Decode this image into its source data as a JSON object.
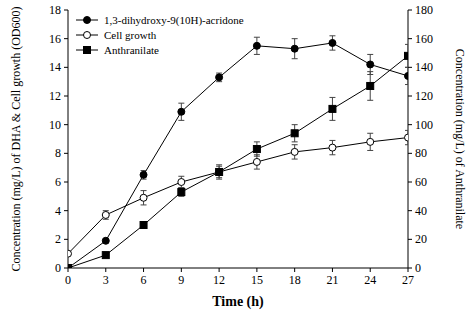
{
  "chart_data": {
    "type": "line",
    "x_label": "Time (h)",
    "y_label": "Concentration (mg/L) of DHA & Cell growth (OD600)",
    "y2_label": "Concentration (mg/L) of Anthranilate",
    "x": [
      0,
      3,
      6,
      9,
      12,
      15,
      18,
      21,
      24,
      27
    ],
    "xlim": [
      0,
      27
    ],
    "xticks": [
      0,
      3,
      6,
      9,
      12,
      15,
      18,
      21,
      24,
      27
    ],
    "ylim": [
      0,
      18
    ],
    "yticks": [
      0,
      2,
      4,
      6,
      8,
      10,
      12,
      14,
      16,
      18
    ],
    "y2lim": [
      0,
      180
    ],
    "y2ticks": [
      0,
      20,
      40,
      60,
      80,
      100,
      120,
      140,
      160,
      180
    ],
    "grid": false,
    "legend": "upper-left",
    "series": [
      {
        "name": "1,3-dihydroxy-9(10H)-acridone",
        "color": "#000000",
        "marker": "circle",
        "line_style": "solid",
        "values": [
          0,
          1.9,
          6.5,
          10.9,
          13.3,
          15.5,
          15.3,
          15.7,
          14.2,
          13.4
        ],
        "errors": [
          0,
          0.1,
          0.3,
          0.6,
          0.3,
          0.6,
          0.7,
          0.5,
          0.7,
          0.6
        ]
      },
      {
        "name": "Cell growth",
        "color": "#000000",
        "marker": "circle_open",
        "line_style": "solid",
        "values": [
          1.0,
          3.7,
          4.9,
          6.0,
          6.7,
          7.4,
          8.1,
          8.4,
          8.8,
          9.1
        ],
        "errors": [
          0,
          0.3,
          0.5,
          0.4,
          0.4,
          0.5,
          0.5,
          0.5,
          0.6,
          0.5
        ]
      },
      {
        "name": "Anthranilate",
        "color": "#000000",
        "marker": "square",
        "line_style": "solid",
        "axis": "y2",
        "values": [
          0,
          9,
          30,
          53,
          67,
          83,
          94,
          111,
          127,
          148
        ],
        "errors": [
          0,
          0.8,
          1,
          3,
          5,
          5,
          6,
          8,
          10,
          8
        ]
      }
    ]
  }
}
